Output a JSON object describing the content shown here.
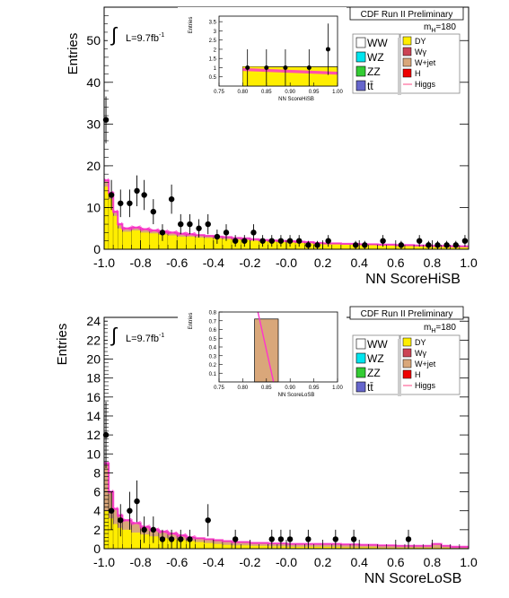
{
  "chart_data": [
    {
      "type": "histogram",
      "experiment": "CDF Run II Preliminary",
      "mass_label": "m",
      "mass_sub": "H",
      "mass_value": "=180",
      "lumi_label": "L=9.7fb",
      "lumi_sup": "-1",
      "integral_symbol": "∫",
      "xlabel": "NN ScoreHiSB",
      "ylabel": "Entries",
      "xlim": [
        -1.0,
        1.0
      ],
      "ylim": [
        0,
        58
      ],
      "xticks": [
        "-1.0",
        "-0.8",
        "-0.6",
        "-0.4",
        "-0.2",
        "-0.0",
        "0.2",
        "0.4",
        "0.6",
        "0.8",
        "1.0"
      ],
      "yticks": [
        0,
        10,
        20,
        30,
        40,
        50
      ],
      "bin_edges": [
        -1.0,
        -0.975,
        -0.95,
        -0.925,
        -0.9,
        -0.85,
        -0.8,
        -0.75,
        -0.7,
        -0.65,
        -0.6,
        -0.55,
        -0.5,
        -0.45,
        -0.4,
        -0.35,
        -0.3,
        -0.25,
        -0.2,
        -0.15,
        -0.1,
        -0.05,
        0.0,
        0.05,
        0.1,
        0.15,
        0.2,
        0.3,
        0.4,
        0.5,
        0.6,
        0.7,
        0.8,
        0.9,
        1.0
      ],
      "dy_values": [
        15,
        12,
        8,
        5,
        4.2,
        4.5,
        4,
        3.8,
        3.5,
        3.3,
        3,
        3,
        2.8,
        2.7,
        2.5,
        2.4,
        2.3,
        2.2,
        2,
        1.9,
        1.8,
        1.7,
        1.6,
        1.5,
        1.4,
        1.3,
        1.2,
        1.1,
        1.0,
        0.9,
        0.8,
        0.7,
        0.6,
        0.5
      ],
      "total_values": [
        16.5,
        13.5,
        9,
        6,
        5,
        5.2,
        4.8,
        4.5,
        4.2,
        4,
        3.7,
        3.6,
        3.4,
        3.2,
        3,
        2.9,
        2.7,
        2.6,
        2.4,
        2.2,
        2.1,
        2,
        1.9,
        1.8,
        1.7,
        1.5,
        1.4,
        1.3,
        1.2,
        1.1,
        1.0,
        0.9,
        0.8,
        0.7
      ],
      "data_points": [
        {
          "x": -0.99,
          "y": 31,
          "err": 5.6
        },
        {
          "x": -0.96,
          "y": 13,
          "err": 3.6
        },
        {
          "x": -0.91,
          "y": 11,
          "err": 3.3
        },
        {
          "x": -0.86,
          "y": 11,
          "err": 3.3
        },
        {
          "x": -0.82,
          "y": 14,
          "err": 3.7
        },
        {
          "x": -0.78,
          "y": 13,
          "err": 3.6
        },
        {
          "x": -0.73,
          "y": 9,
          "err": 3
        },
        {
          "x": -0.68,
          "y": 4,
          "err": 2
        },
        {
          "x": -0.63,
          "y": 12,
          "err": 3.5
        },
        {
          "x": -0.58,
          "y": 6,
          "err": 2.4
        },
        {
          "x": -0.53,
          "y": 6,
          "err": 2.4
        },
        {
          "x": -0.48,
          "y": 5,
          "err": 2.2
        },
        {
          "x": -0.43,
          "y": 6,
          "err": 2.4
        },
        {
          "x": -0.38,
          "y": 3,
          "err": 1.7
        },
        {
          "x": -0.33,
          "y": 4,
          "err": 2
        },
        {
          "x": -0.28,
          "y": 2,
          "err": 1.4
        },
        {
          "x": -0.23,
          "y": 2,
          "err": 1.4
        },
        {
          "x": -0.18,
          "y": 4,
          "err": 2
        },
        {
          "x": -0.13,
          "y": 2,
          "err": 1.4
        },
        {
          "x": -0.08,
          "y": 2,
          "err": 1.4
        },
        {
          "x": -0.03,
          "y": 2,
          "err": 1.4
        },
        {
          "x": 0.02,
          "y": 2,
          "err": 1.4
        },
        {
          "x": 0.07,
          "y": 2,
          "err": 1.4
        },
        {
          "x": 0.12,
          "y": 1,
          "err": 1
        },
        {
          "x": 0.17,
          "y": 1,
          "err": 1
        },
        {
          "x": 0.23,
          "y": 2,
          "err": 1.4
        },
        {
          "x": 0.38,
          "y": 1,
          "err": 1
        },
        {
          "x": 0.43,
          "y": 1,
          "err": 1
        },
        {
          "x": 0.53,
          "y": 2,
          "err": 1.4
        },
        {
          "x": 0.63,
          "y": 1,
          "err": 1
        },
        {
          "x": 0.73,
          "y": 2,
          "err": 1.4
        },
        {
          "x": 0.78,
          "y": 1,
          "err": 1
        },
        {
          "x": 0.83,
          "y": 1,
          "err": 1
        },
        {
          "x": 0.88,
          "y": 1,
          "err": 1
        },
        {
          "x": 0.93,
          "y": 1,
          "err": 1
        },
        {
          "x": 0.98,
          "y": 2,
          "err": 1.4
        }
      ],
      "inset": {
        "xlim": [
          0.75,
          1.0
        ],
        "ylim": [
          0,
          3.8
        ],
        "xticks": [
          "0.75",
          "0.80",
          "0.85",
          "0.90",
          "0.95",
          "1.00"
        ],
        "yticks": [
          "0.5",
          "1",
          "1.5",
          "2",
          "2.5",
          "3",
          "3.5"
        ],
        "xlabel": "NN ScoreHiSB",
        "ylabel": "Entries",
        "bin_edges": [
          0.8,
          0.85,
          0.9,
          0.95,
          1.0
        ],
        "bkg_values": [
          1.05,
          1.0,
          0.95,
          0.85
        ],
        "sig_band": [
          [
            0.8,
            0.98,
            0.82
          ],
          [
            1.0,
            0.78,
            0.62
          ]
        ],
        "data_points": [
          {
            "x": 0.81,
            "y": 1,
            "err": 1
          },
          {
            "x": 0.85,
            "y": 1,
            "err": 1
          },
          {
            "x": 0.89,
            "y": 1,
            "err": 1
          },
          {
            "x": 0.94,
            "y": 1,
            "err": 1
          },
          {
            "x": 0.98,
            "y": 2,
            "err": 1.4
          }
        ]
      }
    },
    {
      "type": "histogram",
      "experiment": "CDF Run II Preliminary",
      "mass_label": "m",
      "mass_sub": "H",
      "mass_value": "=180",
      "lumi_label": "L=9.7fb",
      "lumi_sup": "-1",
      "integral_symbol": "∫",
      "xlabel": "NN ScoreLoSB",
      "ylabel": "Entries",
      "xlim": [
        -1.0,
        1.0
      ],
      "ylim": [
        0,
        24.4
      ],
      "xticks": [
        "-1.0",
        "-0.8",
        "-0.6",
        "-0.4",
        "-0.2",
        "-0.0",
        "0.2",
        "0.4",
        "0.6",
        "0.8",
        "1.0"
      ],
      "yticks": [
        0,
        2,
        4,
        6,
        8,
        10,
        12,
        14,
        16,
        18,
        20,
        22,
        24
      ],
      "bin_edges": [
        -1.0,
        -0.975,
        -0.95,
        -0.925,
        -0.9,
        -0.85,
        -0.8,
        -0.75,
        -0.7,
        -0.65,
        -0.6,
        -0.55,
        -0.5,
        -0.45,
        -0.4,
        -0.35,
        -0.3,
        -0.2,
        -0.1,
        0.0,
        0.1,
        0.2,
        0.3,
        0.4,
        0.5,
        0.6,
        0.7,
        0.8,
        0.85,
        0.9,
        1.0
      ],
      "dy_values": [
        4,
        3.2,
        2.6,
        2.2,
        2,
        1.7,
        1.5,
        1.3,
        1.1,
        1,
        0.9,
        0.8,
        0.7,
        0.6,
        0.5,
        0.4,
        0.35,
        0.3,
        0.25,
        0.2,
        0.2,
        0.2,
        0.15,
        0.15,
        0.1,
        0.1,
        0.1,
        0.1,
        0.1,
        0.05
      ],
      "total_values": [
        9,
        6,
        4.2,
        3.5,
        3,
        2.7,
        2.3,
        2,
        1.8,
        1.6,
        1.4,
        1.2,
        1.1,
        1,
        0.9,
        0.8,
        0.7,
        0.6,
        0.55,
        0.5,
        0.5,
        0.5,
        0.45,
        0.4,
        0.35,
        0.3,
        0.3,
        0.5,
        0.3,
        0.2
      ],
      "data_points": [
        {
          "x": -0.99,
          "y": 12,
          "err": 3.5
        },
        {
          "x": -0.96,
          "y": 4,
          "err": 2
        },
        {
          "x": -0.91,
          "y": 3,
          "err": 1.7
        },
        {
          "x": -0.86,
          "y": 4,
          "err": 2
        },
        {
          "x": -0.82,
          "y": 5,
          "err": 2.2
        },
        {
          "x": -0.78,
          "y": 2,
          "err": 1.4
        },
        {
          "x": -0.73,
          "y": 2,
          "err": 1.4
        },
        {
          "x": -0.68,
          "y": 1,
          "err": 1
        },
        {
          "x": -0.63,
          "y": 1,
          "err": 1
        },
        {
          "x": -0.58,
          "y": 1,
          "err": 1
        },
        {
          "x": -0.53,
          "y": 1,
          "err": 1
        },
        {
          "x": -0.43,
          "y": 3,
          "err": 1.7
        },
        {
          "x": -0.28,
          "y": 1,
          "err": 1
        },
        {
          "x": -0.08,
          "y": 1,
          "err": 1
        },
        {
          "x": -0.03,
          "y": 1,
          "err": 1
        },
        {
          "x": 0.02,
          "y": 1,
          "err": 1
        },
        {
          "x": 0.12,
          "y": 1,
          "err": 1
        },
        {
          "x": 0.27,
          "y": 1,
          "err": 1
        },
        {
          "x": 0.37,
          "y": 1,
          "err": 1
        },
        {
          "x": 0.67,
          "y": 1,
          "err": 1
        }
      ],
      "inset": {
        "xlim": [
          0.75,
          1.0
        ],
        "ylim": [
          0,
          0.8
        ],
        "xticks": [
          "0.75",
          "0.80",
          "0.85",
          "0.90",
          "0.95",
          "1.00"
        ],
        "yticks": [
          "0.1",
          "0.2",
          "0.3",
          "0.4",
          "0.5",
          "0.6",
          "0.7",
          "0.8"
        ],
        "xlabel": "NN ScoreLoSB",
        "ylabel": "Entries",
        "bin_edges": [
          0.825,
          0.875
        ],
        "bkg_values": [
          0.72
        ],
        "sig_line": [
          [
            0.832,
            0.8
          ],
          [
            0.865,
            0.0
          ]
        ],
        "data_points": []
      }
    }
  ],
  "legend": {
    "left": [
      {
        "label": "WW",
        "color": "#ffffff"
      },
      {
        "label": "WZ",
        "color": "#00e5ee"
      },
      {
        "label": "ZZ",
        "color": "#33cc33"
      },
      {
        "label": "tt̄",
        "color": "#6666cc"
      }
    ],
    "right": [
      {
        "label": "DY",
        "color": "#ffee00"
      },
      {
        "label": "Wγ",
        "color": "#cc4455"
      },
      {
        "label": "W+jet",
        "color": "#d9a77a"
      },
      {
        "label": "H",
        "color": "#ee0000"
      },
      {
        "label": "Higgs",
        "color": "#ff6699",
        "line": true
      }
    ]
  },
  "colors": {
    "dy": "#ffee00",
    "wjet": "#d9a77a",
    "signal": "#ff33cc",
    "data": "#000000"
  }
}
